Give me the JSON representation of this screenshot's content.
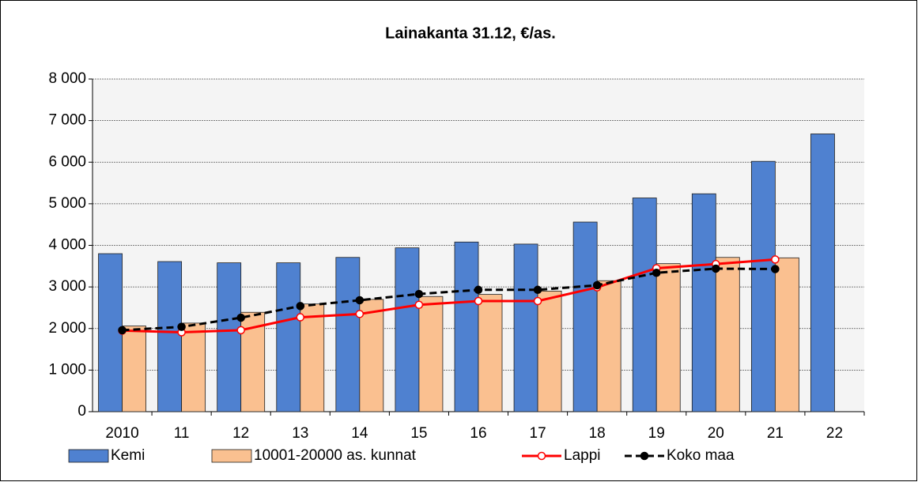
{
  "chart_data": {
    "type": "bar",
    "title": "Lainakanta 31.12, €/as.",
    "categories": [
      "2010",
      "11",
      "12",
      "13",
      "14",
      "15",
      "16",
      "17",
      "18",
      "19",
      "20",
      "21",
      "22"
    ],
    "series": [
      {
        "name": "Kemi",
        "type": "bar",
        "color": "#4f81d0",
        "values": [
          3800,
          3610,
          3580,
          3580,
          3710,
          3940,
          4080,
          4030,
          4560,
          5140,
          5240,
          6020,
          6680
        ]
      },
      {
        "name": "10001-20000 as. kunnat",
        "type": "bar",
        "color": "#fac090",
        "values": [
          2060,
          2130,
          2390,
          2590,
          2700,
          2770,
          2820,
          2900,
          3150,
          3560,
          3710,
          3700,
          null
        ]
      },
      {
        "name": "Lappi",
        "type": "line",
        "color": "#ff0000",
        "values": [
          1950,
          1910,
          1960,
          2270,
          2350,
          2570,
          2660,
          2660,
          2990,
          3450,
          3550,
          3660,
          null
        ]
      },
      {
        "name": "Koko maa",
        "type": "line",
        "color": "#000000",
        "dashed": true,
        "values": [
          1960,
          2040,
          2260,
          2540,
          2680,
          2830,
          2930,
          2930,
          3040,
          3340,
          3440,
          3430,
          null
        ]
      }
    ],
    "ylim": [
      0,
      8000
    ],
    "yticks": [
      0,
      {
        "value": 1000,
        "label": "1 000"
      },
      {
        "value": 2000,
        "label": "2 000"
      },
      {
        "value": 3000,
        "label": "3 000"
      },
      {
        "value": 4000,
        "label": "4 000"
      },
      {
        "value": 5000,
        "label": "5 000"
      },
      {
        "value": 6000,
        "label": "6 000"
      },
      {
        "value": 7000,
        "label": "7 000"
      },
      {
        "value": 8000,
        "label": "8 000"
      }
    ],
    "grid": true,
    "legend": "bottom"
  }
}
